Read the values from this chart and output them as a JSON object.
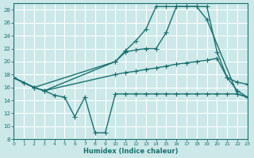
{
  "xlabel": "Humidex (Indice chaleur)",
  "xlim": [
    0,
    23
  ],
  "ylim": [
    8,
    29
  ],
  "yticks": [
    8,
    10,
    12,
    14,
    16,
    18,
    20,
    22,
    24,
    26,
    28
  ],
  "xticks": [
    0,
    1,
    2,
    3,
    4,
    5,
    6,
    7,
    8,
    9,
    10,
    11,
    12,
    13,
    14,
    15,
    16,
    17,
    18,
    19,
    20,
    21,
    22,
    23
  ],
  "bg_color": "#cce8e8",
  "grid_color": "#ffffff",
  "line_color": "#1a7070",
  "series": [
    {
      "x": [
        0,
        1,
        2,
        3,
        4,
        5,
        6,
        7,
        8,
        9,
        10,
        11,
        12,
        13,
        14,
        15,
        16,
        17,
        18,
        19,
        20,
        21,
        22,
        23
      ],
      "y": [
        17.5,
        16.7,
        16.0,
        15.5,
        14.8,
        14.5,
        11.5,
        14.5,
        9.0,
        9.0,
        15.0,
        15.0,
        15.0,
        15.0,
        15.0,
        15.0,
        15.0,
        15.0,
        15.0,
        15.0,
        15.0,
        15.0,
        15.0,
        14.5
      ]
    },
    {
      "x": [
        0,
        2,
        3,
        10,
        11,
        12,
        13,
        14,
        15,
        16,
        17,
        18,
        19,
        20,
        21,
        22,
        23
      ],
      "y": [
        17.5,
        16.0,
        15.5,
        18.0,
        18.3,
        18.5,
        18.8,
        19.0,
        19.3,
        19.6,
        19.8,
        20.0,
        20.2,
        20.5,
        17.5,
        16.8,
        16.5
      ]
    },
    {
      "x": [
        0,
        2,
        3,
        10,
        11,
        12,
        13,
        14,
        15,
        16,
        17,
        18,
        19,
        20,
        21,
        22,
        23
      ],
      "y": [
        17.5,
        16.0,
        15.5,
        20.0,
        21.5,
        21.8,
        22.0,
        22.0,
        24.5,
        28.5,
        28.5,
        28.5,
        28.5,
        21.5,
        17.5,
        15.5,
        14.5
      ]
    },
    {
      "x": [
        0,
        2,
        10,
        11,
        12,
        13,
        14,
        15,
        16,
        17,
        18,
        19,
        22,
        23
      ],
      "y": [
        17.5,
        16.0,
        20.0,
        21.7,
        23.2,
        25.0,
        28.5,
        28.5,
        28.5,
        28.5,
        28.5,
        26.5,
        15.0,
        14.5
      ]
    }
  ]
}
